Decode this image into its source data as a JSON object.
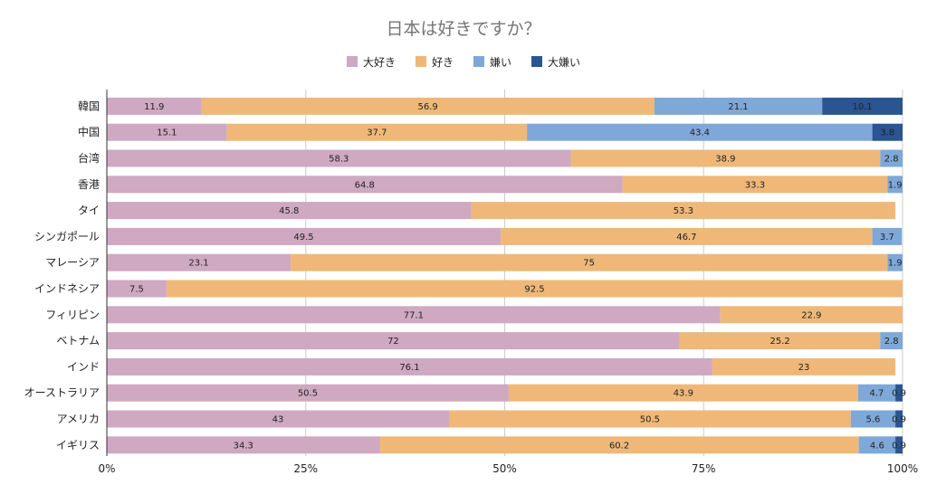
{
  "chart_data": {
    "type": "bar",
    "orientation": "horizontal",
    "stacked": true,
    "title": "日本は好きですか？",
    "categories": [
      "韓国",
      "中国",
      "台湾",
      "香港",
      "タイ",
      "シンガポール",
      "マレーシア",
      "インドネシア",
      "フィリピン",
      "ベトナム",
      "インド",
      "オーストラリア",
      "アメリカ",
      "イギリス"
    ],
    "series": [
      {
        "name": "大好き",
        "color": "#cfa8c2",
        "values": [
          11.9,
          15.1,
          58.3,
          64.8,
          45.8,
          49.5,
          23.1,
          7.5,
          77.1,
          72,
          76.1,
          50.5,
          43,
          34.3
        ]
      },
      {
        "name": "好き",
        "color": "#efb878",
        "values": [
          56.9,
          37.7,
          38.9,
          33.3,
          53.3,
          46.7,
          75,
          92.5,
          22.9,
          25.2,
          23,
          43.9,
          50.5,
          60.2
        ]
      },
      {
        "name": "嫌い",
        "color": "#7ea8d8",
        "values": [
          21.1,
          43.4,
          2.8,
          1.9,
          0,
          3.7,
          1.9,
          0,
          0,
          2.8,
          0,
          4.7,
          5.6,
          4.6
        ]
      },
      {
        "name": "大嫌い",
        "color": "#2a5592",
        "values": [
          10.1,
          3.8,
          0,
          0,
          0,
          0,
          0,
          0,
          0,
          0,
          0,
          0.9,
          0.9,
          0.9
        ]
      }
    ],
    "xlim": [
      0,
      100
    ],
    "xticks": [
      "0%",
      "25%",
      "50%",
      "75%",
      "100%"
    ],
    "grid": true,
    "legend": "top"
  }
}
